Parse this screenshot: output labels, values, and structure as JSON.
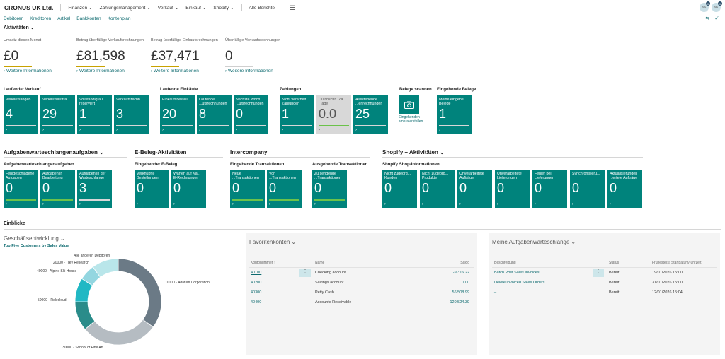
{
  "header": {
    "company": "CRONUS UK Ltd.",
    "menus": [
      "Finanzen",
      "Zahlungsmanagement",
      "Verkauf",
      "Einkauf",
      "Shopify"
    ],
    "all_reports": "Alle Berichte",
    "avatars": [
      "96",
      "96"
    ],
    "badges": [
      "0",
      "0"
    ]
  },
  "subnav": [
    "Debitoren",
    "Kreditoren",
    "Artikel",
    "Bankkonten",
    "Kontenplan"
  ],
  "activities": {
    "title": "Aktivitäten",
    "kpis": [
      {
        "label": "Umsatz diesen Monat",
        "value": "£0",
        "more": "Weitere Informationen"
      },
      {
        "label": "Betrag überfällige Verkaufsrechnungen",
        "value": "£81,598",
        "more": "Weitere Informationen"
      },
      {
        "label": "Betrag überfällige Einkaufsrechnungen",
        "value": "£37,471",
        "more": "Weitere Informationen"
      },
      {
        "label": "Überfällige Verkaufsrechnungen",
        "value": "0",
        "more": "Weitere Informationen"
      }
    ],
    "kpi_bars": [
      0.25,
      0.25,
      0.25,
      0.0
    ]
  },
  "groups1": [
    {
      "title": "Laufender Verkauf",
      "tiles": [
        {
          "label": "Verkaufsangeb...",
          "value": "4"
        },
        {
          "label": "Verkaufsaufträ...",
          "value": "29"
        },
        {
          "label": "Vollständig au... reserviert",
          "value": "1"
        },
        {
          "label": "Verkaufsrechn...",
          "value": "3"
        }
      ]
    },
    {
      "title": "Laufende Einkäufe",
      "tiles": [
        {
          "label": "Einkaufsbestell...",
          "value": "20"
        },
        {
          "label": "Laufende ...ufsrechnungen",
          "value": "8"
        },
        {
          "label": "Nächste Woch... ...ufsrechnungen",
          "value": "0"
        }
      ]
    },
    {
      "title": "Zahlungen",
      "tiles": [
        {
          "label": "Nicht verarbeit... Zahlungen",
          "value": "1"
        },
        {
          "label": "Durchschn. Za... (Tage)",
          "value": "0.0"
        },
        {
          "label": "Ausstehende ...enrechnungen",
          "value": "25"
        }
      ]
    },
    {
      "title": "Belege scannen",
      "caption": "Eingehenden ...amera erstellen"
    },
    {
      "title": "Eingehende Belege",
      "tiles": [
        {
          "label": "Meine eingehe... Belege",
          "value": "1"
        }
      ]
    }
  ],
  "groups2": [
    {
      "title": "Aufgabenwarteschlangenaufgaben",
      "subtitle": "Aufgabenwarteschlangenaufgaben",
      "tiles": [
        {
          "label": "Fehlgeschlagene Aufgaben",
          "value": "0"
        },
        {
          "label": "Aufgaben in Bearbeitung",
          "value": "0"
        },
        {
          "label": "Aufgaben in der Warteschlange",
          "value": "3"
        }
      ]
    },
    {
      "title": "E-Beleg-Aktivitäten",
      "subtitle": "Eingehender E-Beleg",
      "tiles": [
        {
          "label": "Verknüpfte Bestellungen",
          "value": "0"
        },
        {
          "label": "Warten auf Ka... E-Rechnungen",
          "value": "0"
        }
      ]
    },
    {
      "title": "Intercompany",
      "subtitle": "Eingehende Transaktionen",
      "tiles": [
        {
          "label": "Neue ...Transaktionen",
          "value": "0"
        },
        {
          "label": "Von ...Transaktionen",
          "value": "0"
        }
      ]
    },
    {
      "title": "",
      "subtitle": "Ausgehende Transaktionen",
      "tiles": [
        {
          "label": "Zu sendende ...Transaktionen",
          "value": "0"
        }
      ]
    },
    {
      "title": "Shopify – Aktivitäten",
      "subtitle": "Shopify Shop-Informationen",
      "tiles": [
        {
          "label": "Nicht zugeord... Kunden",
          "value": "0"
        },
        {
          "label": "Nicht zugeord... Produkte",
          "value": "0"
        },
        {
          "label": "Unverarbeitete Aufträge",
          "value": "0"
        },
        {
          "label": "Unverarbeitete Lieferungen",
          "value": "0"
        },
        {
          "label": "Fehler bei Lieferungen",
          "value": "0"
        },
        {
          "label": "Synchronisieru...",
          "value": "0"
        },
        {
          "label": "Aktualisierungen ...ertete Aufträge",
          "value": "0"
        }
      ]
    }
  ],
  "insights": {
    "title": "Einblicke",
    "business": {
      "title": "Geschäftsentwicklung",
      "subtitle": "Top Five Customers by Sales Value"
    },
    "favorites": {
      "title": "Favoritenkonten",
      "columns": [
        "Kontonummer ↑",
        "Name",
        "Saldo"
      ],
      "rows": [
        {
          "no": "40100",
          "name": "Checking account",
          "balance": "-9,316.22"
        },
        {
          "no": "40200",
          "name": "Savings account",
          "balance": "0.00"
        },
        {
          "no": "40300",
          "name": "Petty Cash",
          "balance": "56,508.99"
        },
        {
          "no": "40400",
          "name": "Accounts Receivable",
          "balance": "120,524.39"
        }
      ]
    },
    "queue": {
      "title": "Meine Aufgabenwarteschlange",
      "columns": [
        "Beschreibung",
        "Status",
        "Früheste(s) Startdatum/-uhrzeit"
      ],
      "rows": [
        {
          "desc": "Batch Post Sales Invoices",
          "status": "Bereit",
          "start": "19/01/2026 15:00"
        },
        {
          "desc": "Delete Invoiced Sales Orders",
          "status": "Bereit",
          "start": "31/01/2026 15:00"
        },
        {
          "desc": "_",
          "status": "Bereit",
          "start": "12/01/2026 15:04"
        }
      ]
    }
  },
  "chart_data": {
    "type": "pie",
    "subtype": "doughnut",
    "title": "Top Five Customers by Sales Value",
    "categories": [
      "10000 - Adatum Corporation",
      "30000 - School of Fine Art",
      "50000 - Relecloud",
      "40000 - Alpine Ski House",
      "20000 - Trey Research",
      "Alle anderen Debitoren"
    ],
    "values": [
      35,
      29,
      11,
      9,
      6,
      10
    ],
    "colors": [
      "#6b7a86",
      "#b5bcc2",
      "#2a8c8a",
      "#21b8c4",
      "#93d6e0",
      "#b9e6ea"
    ]
  }
}
